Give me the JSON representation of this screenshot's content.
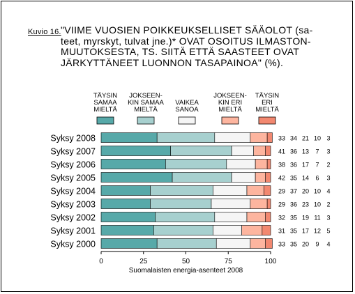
{
  "figure_label": "Kuvio 16.",
  "chart_data": {
    "type": "bar",
    "stacked": true,
    "orientation": "horizontal",
    "title_lines": [
      "\"VIIME VUOSIEN POIKKEUKSELLISET SÄÄOLOT (sa-",
      "teet, myrskyt, tulvat jne.)* OVAT OSOITUS ILMASTON-",
      "MUUTOKSESTA, TS. SIITÄ ETTÄ SAASTEET OVAT",
      "JÄRKYTTÄNEET LUONNON TASAPAINOA\" (%)."
    ],
    "xlabel": "Suomalaisten energia-asenteet 2008",
    "xlim": [
      0,
      100
    ],
    "xticks": [
      0,
      25,
      50,
      75,
      100
    ],
    "categories": [
      "Syksy 2008",
      "Syksy 2007",
      "Syksy 2006",
      "Syksy 2005",
      "Syksy 2004",
      "Syksy 2003",
      "Syksy 2002",
      "Syksy 2001",
      "Syksy 2000"
    ],
    "series": [
      {
        "name": [
          "TÄYSIN",
          "SAMAA",
          "MIELTÄ"
        ],
        "color": "#57a9a9",
        "values": [
          33,
          41,
          38,
          42,
          29,
          29,
          32,
          31,
          33
        ]
      },
      {
        "name": [
          "JOKSEEN-",
          "KIN SAMAA",
          "MIELTÄ"
        ],
        "color": "#a7d0cf",
        "values": [
          34,
          36,
          36,
          35,
          37,
          36,
          35,
          35,
          35
        ]
      },
      {
        "name": [
          "VAIKEA",
          "SANOA"
        ],
        "color": "#f5f5f5",
        "values": [
          21,
          13,
          17,
          14,
          20,
          23,
          19,
          17,
          20
        ]
      },
      {
        "name": [
          "JOKSEEN-",
          "KIN ERI",
          "MIELTÄ"
        ],
        "color": "#fdb59f",
        "values": [
          10,
          7,
          7,
          6,
          10,
          10,
          11,
          12,
          9
        ]
      },
      {
        "name": [
          "TÄYSIN",
          "ERI",
          "MIELTÄ"
        ],
        "color": "#f28870",
        "values": [
          3,
          3,
          2,
          3,
          4,
          2,
          3,
          5,
          4
        ]
      }
    ],
    "grid": false,
    "legend": "top"
  }
}
